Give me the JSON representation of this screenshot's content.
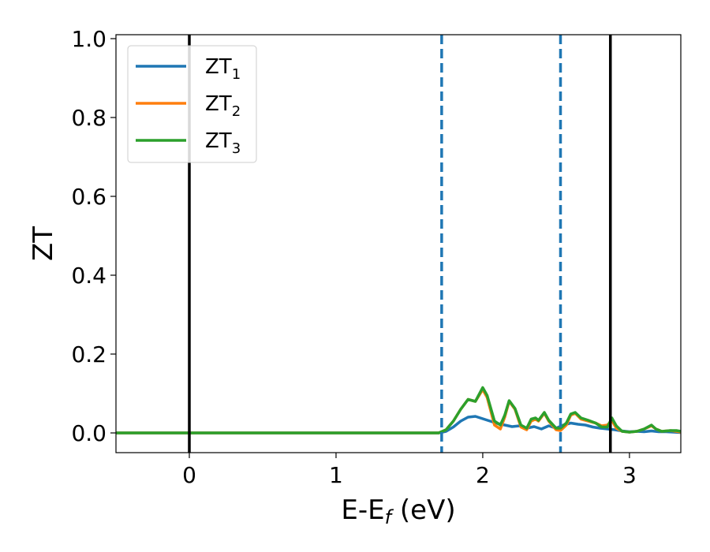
{
  "chart_data": {
    "type": "line",
    "xlabel": {
      "base": "E-E",
      "sub": "f",
      "suffix": " (eV)"
    },
    "ylabel": "ZT",
    "xlim": [
      -0.5,
      3.35
    ],
    "ylim": [
      -0.05,
      1.01
    ],
    "xticks": [
      {
        "value": 0,
        "label": "0"
      },
      {
        "value": 1,
        "label": "1"
      },
      {
        "value": 2,
        "label": "2"
      },
      {
        "value": 3,
        "label": "3"
      }
    ],
    "yticks": [
      {
        "value": 0.0,
        "label": "0.0"
      },
      {
        "value": 0.2,
        "label": "0.2"
      },
      {
        "value": 0.4,
        "label": "0.4"
      },
      {
        "value": 0.6,
        "label": "0.6"
      },
      {
        "value": 0.8,
        "label": "0.8"
      },
      {
        "value": 1.0,
        "label": "1.0"
      }
    ],
    "grid": false,
    "legend_position": "top-left",
    "vlines": [
      {
        "x": 0.0,
        "style": "solid",
        "color": "#000000"
      },
      {
        "x": 1.72,
        "style": "dashed",
        "color": "#1f77b4"
      },
      {
        "x": 2.53,
        "style": "dashed",
        "color": "#1f77b4"
      },
      {
        "x": 2.87,
        "style": "solid",
        "color": "#000000"
      }
    ],
    "series": [
      {
        "name": "ZT",
        "subscript": "1",
        "color": "#1f77b4",
        "points": [
          [
            -0.5,
            0
          ],
          [
            1.7,
            0
          ],
          [
            1.75,
            0.004
          ],
          [
            1.8,
            0.015
          ],
          [
            1.85,
            0.03
          ],
          [
            1.9,
            0.04
          ],
          [
            1.95,
            0.042
          ],
          [
            2.0,
            0.036
          ],
          [
            2.05,
            0.03
          ],
          [
            2.1,
            0.024
          ],
          [
            2.15,
            0.02
          ],
          [
            2.2,
            0.016
          ],
          [
            2.25,
            0.018
          ],
          [
            2.3,
            0.012
          ],
          [
            2.35,
            0.016
          ],
          [
            2.4,
            0.01
          ],
          [
            2.45,
            0.018
          ],
          [
            2.5,
            0.012
          ],
          [
            2.55,
            0.02
          ],
          [
            2.6,
            0.025
          ],
          [
            2.65,
            0.022
          ],
          [
            2.7,
            0.02
          ],
          [
            2.75,
            0.015
          ],
          [
            2.8,
            0.012
          ],
          [
            2.85,
            0.01
          ],
          [
            2.9,
            0.008
          ],
          [
            2.95,
            0.005
          ],
          [
            3.0,
            0.003
          ],
          [
            3.05,
            0.004
          ],
          [
            3.1,
            0.003
          ],
          [
            3.15,
            0.005
          ],
          [
            3.2,
            0.003
          ],
          [
            3.25,
            0.003
          ],
          [
            3.3,
            0.002
          ],
          [
            3.35,
            0.001
          ]
        ]
      },
      {
        "name": "ZT",
        "subscript": "2",
        "color": "#ff7f0e",
        "points": [
          [
            -0.5,
            0
          ],
          [
            1.7,
            0
          ],
          [
            1.75,
            0.008
          ],
          [
            1.8,
            0.03
          ],
          [
            1.85,
            0.06
          ],
          [
            1.9,
            0.085
          ],
          [
            1.95,
            0.08
          ],
          [
            2.0,
            0.11
          ],
          [
            2.03,
            0.09
          ],
          [
            2.08,
            0.02
          ],
          [
            2.12,
            0.01
          ],
          [
            2.15,
            0.04
          ],
          [
            2.18,
            0.08
          ],
          [
            2.22,
            0.06
          ],
          [
            2.26,
            0.015
          ],
          [
            2.3,
            0.008
          ],
          [
            2.33,
            0.03
          ],
          [
            2.36,
            0.035
          ],
          [
            2.38,
            0.03
          ],
          [
            2.42,
            0.05
          ],
          [
            2.45,
            0.03
          ],
          [
            2.5,
            0.008
          ],
          [
            2.53,
            0.006
          ],
          [
            2.57,
            0.02
          ],
          [
            2.6,
            0.045
          ],
          [
            2.63,
            0.05
          ],
          [
            2.67,
            0.035
          ],
          [
            2.72,
            0.03
          ],
          [
            2.77,
            0.025
          ],
          [
            2.81,
            0.018
          ],
          [
            2.85,
            0.02
          ],
          [
            2.88,
            0.032
          ],
          [
            2.91,
            0.012
          ],
          [
            2.95,
            0.004
          ],
          [
            3.0,
            0.002
          ],
          [
            3.05,
            0.004
          ],
          [
            3.1,
            0.01
          ],
          [
            3.15,
            0.018
          ],
          [
            3.18,
            0.01
          ],
          [
            3.22,
            0.004
          ],
          [
            3.28,
            0.006
          ],
          [
            3.32,
            0.004
          ],
          [
            3.35,
            0.002
          ]
        ]
      },
      {
        "name": "ZT",
        "subscript": "3",
        "color": "#2ca02c",
        "points": [
          [
            -0.5,
            0
          ],
          [
            1.7,
            0
          ],
          [
            1.75,
            0.008
          ],
          [
            1.8,
            0.03
          ],
          [
            1.85,
            0.06
          ],
          [
            1.9,
            0.085
          ],
          [
            1.95,
            0.08
          ],
          [
            2.0,
            0.115
          ],
          [
            2.03,
            0.095
          ],
          [
            2.08,
            0.03
          ],
          [
            2.12,
            0.02
          ],
          [
            2.15,
            0.045
          ],
          [
            2.18,
            0.082
          ],
          [
            2.22,
            0.062
          ],
          [
            2.26,
            0.02
          ],
          [
            2.3,
            0.012
          ],
          [
            2.33,
            0.035
          ],
          [
            2.36,
            0.038
          ],
          [
            2.38,
            0.032
          ],
          [
            2.42,
            0.052
          ],
          [
            2.45,
            0.032
          ],
          [
            2.5,
            0.012
          ],
          [
            2.53,
            0.012
          ],
          [
            2.57,
            0.025
          ],
          [
            2.6,
            0.048
          ],
          [
            2.63,
            0.052
          ],
          [
            2.67,
            0.038
          ],
          [
            2.72,
            0.032
          ],
          [
            2.77,
            0.025
          ],
          [
            2.81,
            0.015
          ],
          [
            2.85,
            0.015
          ],
          [
            2.88,
            0.038
          ],
          [
            2.91,
            0.018
          ],
          [
            2.95,
            0.004
          ],
          [
            3.0,
            0.002
          ],
          [
            3.05,
            0.004
          ],
          [
            3.1,
            0.01
          ],
          [
            3.15,
            0.02
          ],
          [
            3.18,
            0.01
          ],
          [
            3.22,
            0.004
          ],
          [
            3.28,
            0.006
          ],
          [
            3.32,
            0.006
          ],
          [
            3.35,
            0.004
          ]
        ]
      }
    ]
  }
}
